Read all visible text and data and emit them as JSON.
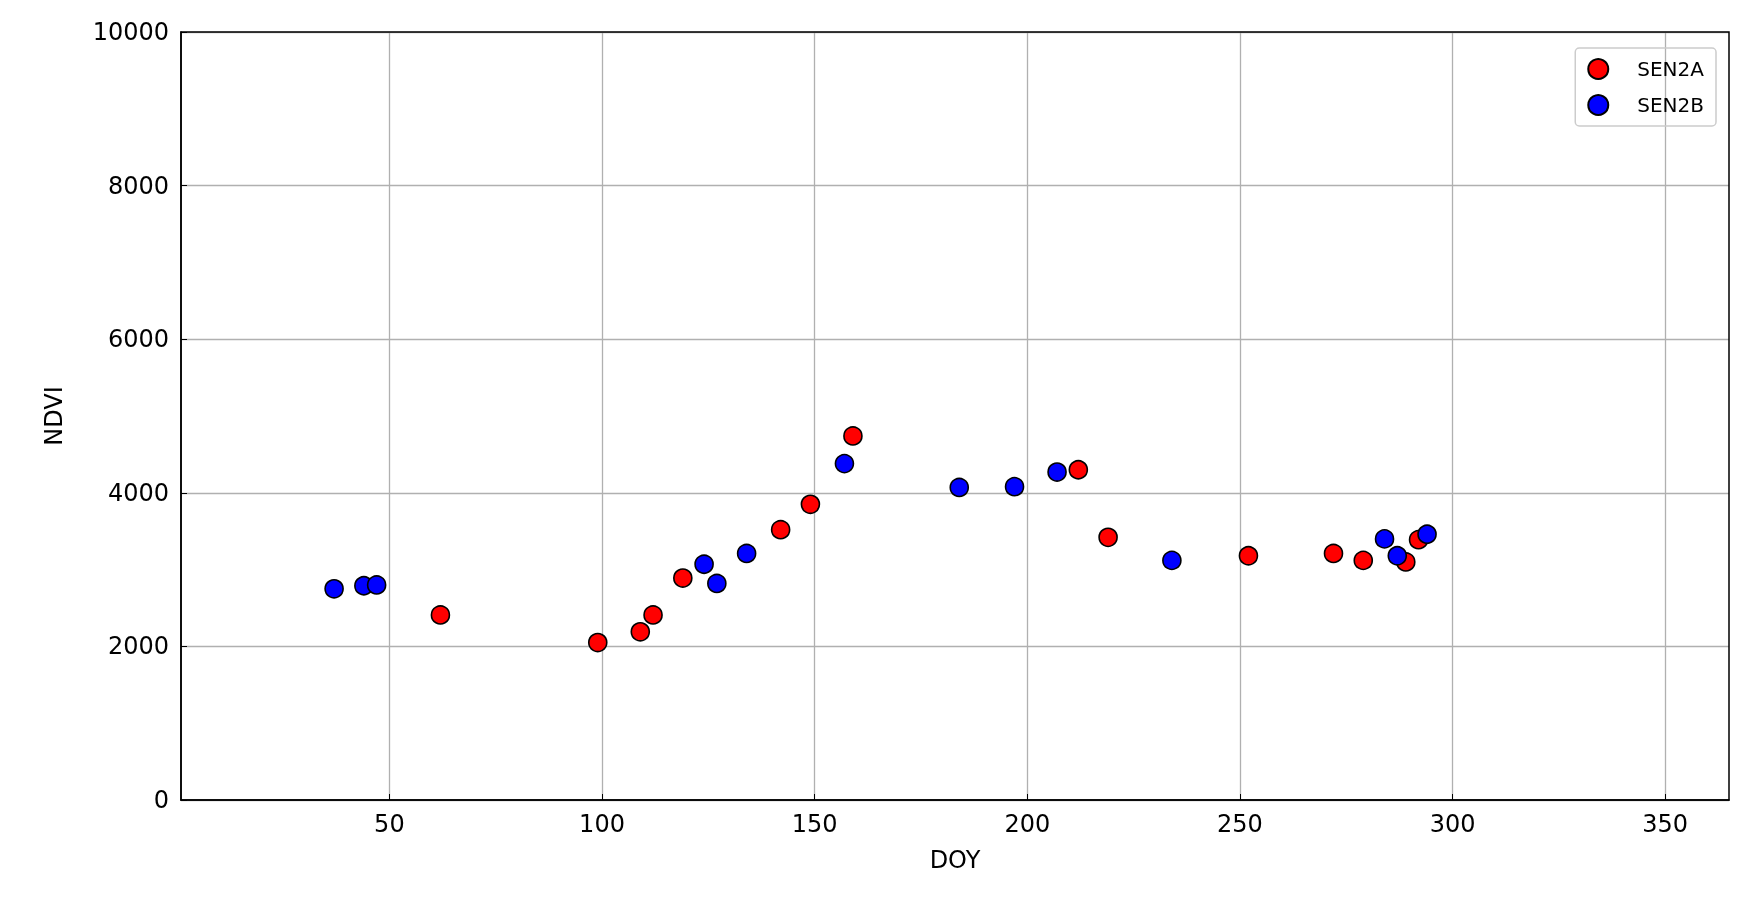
{
  "chart_data": {
    "type": "scatter",
    "xlabel": "DOY",
    "ylabel": "NDVI",
    "xlim": [
      1,
      365
    ],
    "xticks": [
      50,
      100,
      150,
      200,
      250,
      300,
      350
    ],
    "ylim": [
      0,
      10000
    ],
    "yticks": [
      0,
      2000,
      4000,
      6000,
      8000,
      10000
    ],
    "grid": true,
    "legend": "top right",
    "marker": "circle",
    "series": [
      {
        "name": "SEN2A",
        "color": "#ff0000",
        "x": [
          62,
          99,
          109,
          112,
          119,
          142,
          149,
          159,
          212,
          219,
          252,
          272,
          279,
          289,
          292
        ],
        "values": [
          2410,
          2050,
          2190,
          2410,
          2890,
          3520,
          3850,
          4740,
          4300,
          3420,
          3180,
          3210,
          3120,
          3100,
          3390
        ]
      },
      {
        "name": "SEN2B",
        "color": "#0000ff",
        "x": [
          37,
          44,
          47,
          124,
          127,
          134,
          157,
          184,
          197,
          207,
          234,
          284,
          287,
          294
        ],
        "values": [
          2750,
          2790,
          2800,
          3070,
          2820,
          3210,
          4380,
          4070,
          4080,
          4270,
          3120,
          3400,
          3180,
          3460
        ]
      }
    ]
  }
}
